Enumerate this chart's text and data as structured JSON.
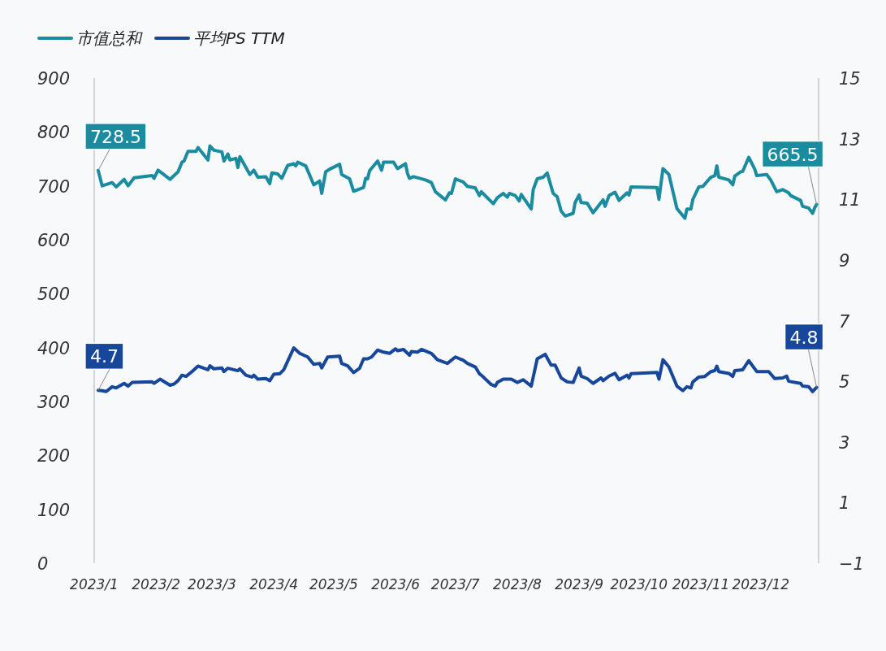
{
  "chart_data": {
    "type": "line",
    "xlim": [
      "2023-01-01",
      "2023-12-30"
    ],
    "xticks": [
      {
        "value": "2023-01-01",
        "label": "2023/1"
      },
      {
        "value": "2023-02-01",
        "label": "2023/2"
      },
      {
        "value": "2023-03-01",
        "label": "2023/3"
      },
      {
        "value": "2023-04-01",
        "label": "2023/4"
      },
      {
        "value": "2023-05-01",
        "label": "2023/5"
      },
      {
        "value": "2023-06-01",
        "label": "2023/6"
      },
      {
        "value": "2023-07-01",
        "label": "2023/7"
      },
      {
        "value": "2023-08-01",
        "label": "2023/8"
      },
      {
        "value": "2023-09-01",
        "label": "2023/9"
      },
      {
        "value": "2023-10-01",
        "label": "2023/10"
      },
      {
        "value": "2023-11-01",
        "label": "2023/11"
      },
      {
        "value": "2023-12-01",
        "label": "2023/12"
      }
    ],
    "ylim": [
      0,
      900
    ],
    "yticks": [
      0,
      100,
      200,
      300,
      400,
      500,
      600,
      700,
      800,
      900
    ],
    "y2lim": [
      -1,
      15
    ],
    "y2ticks": [
      {
        "value": -1,
        "label": "−1"
      },
      1,
      3,
      5,
      7,
      9,
      11,
      13,
      15
    ],
    "grid": false,
    "legend": "top left",
    "marker": "none",
    "line_style": "solid",
    "series": [
      {
        "name": "市值总和",
        "color": "#1b8ca0",
        "axis": "y",
        "x": [
          "2023-01-03",
          "2023-01-05",
          "2023-01-10",
          "2023-01-12",
          "2023-01-16",
          "2023-01-18",
          "2023-01-21",
          "2023-01-30",
          "2023-01-31",
          "2023-02-02",
          "2023-02-08",
          "2023-02-10",
          "2023-02-12",
          "2023-02-14",
          "2023-02-15",
          "2023-02-17",
          "2023-02-21",
          "2023-02-22",
          "2023-02-27",
          "2023-02-28",
          "2023-03-02",
          "2023-03-06",
          "2023-03-07",
          "2023-03-09",
          "2023-03-10",
          "2023-03-13",
          "2023-03-14",
          "2023-03-15",
          "2023-03-20",
          "2023-03-22",
          "2023-03-24",
          "2023-03-28",
          "2023-03-30",
          "2023-03-31",
          "2023-04-03",
          "2023-04-05",
          "2023-04-08",
          "2023-04-11",
          "2023-04-12",
          "2023-04-13",
          "2023-04-17",
          "2023-04-21",
          "2023-04-24",
          "2023-04-25",
          "2023-04-27",
          "2023-04-29",
          "2023-05-04",
          "2023-05-05",
          "2023-05-09",
          "2023-05-11",
          "2023-05-16",
          "2023-05-17",
          "2023-05-18",
          "2023-05-19",
          "2023-05-23",
          "2023-05-25",
          "2023-05-26",
          "2023-05-31",
          "2023-06-02",
          "2023-06-06",
          "2023-06-07",
          "2023-06-08",
          "2023-06-10",
          "2023-06-16",
          "2023-06-19",
          "2023-06-21",
          "2023-06-26",
          "2023-06-28",
          "2023-06-29",
          "2023-07-01",
          "2023-07-05",
          "2023-07-07",
          "2023-07-11",
          "2023-07-13",
          "2023-07-14",
          "2023-07-20",
          "2023-07-22",
          "2023-07-25",
          "2023-07-27",
          "2023-07-28",
          "2023-07-31",
          "2023-08-02",
          "2023-08-03",
          "2023-08-08",
          "2023-08-09",
          "2023-08-11",
          "2023-08-14",
          "2023-08-16",
          "2023-08-17",
          "2023-08-19",
          "2023-08-21",
          "2023-08-23",
          "2023-08-25",
          "2023-08-29",
          "2023-08-30",
          "2023-09-01",
          "2023-09-02",
          "2023-09-05",
          "2023-09-08",
          "2023-09-13",
          "2023-09-14",
          "2023-09-16",
          "2023-09-19",
          "2023-09-21",
          "2023-09-25",
          "2023-09-26",
          "2023-09-27",
          "2023-10-10",
          "2023-10-11",
          "2023-10-13",
          "2023-10-16",
          "2023-10-20",
          "2023-10-24",
          "2023-10-25",
          "2023-10-27",
          "2023-10-28",
          "2023-10-31",
          "2023-11-02",
          "2023-11-06",
          "2023-11-08",
          "2023-11-09",
          "2023-11-10",
          "2023-11-15",
          "2023-11-17",
          "2023-11-18",
          "2023-11-21",
          "2023-11-22",
          "2023-11-25",
          "2023-11-28",
          "2023-11-29",
          "2023-12-04",
          "2023-12-06",
          "2023-12-09",
          "2023-12-12",
          "2023-12-15",
          "2023-12-16",
          "2023-12-21",
          "2023-12-22",
          "2023-12-25",
          "2023-12-27",
          "2023-12-28",
          "2023-12-29"
        ],
        "values": [
          728.5,
          700,
          706,
          698,
          712,
          700,
          715,
          719,
          714,
          729,
          712,
          719,
          726,
          744,
          746,
          764,
          764,
          771,
          748,
          774,
          766,
          763,
          746,
          759,
          748,
          751,
          734,
          754,
          721,
          729,
          716,
          717,
          704,
          724,
          722,
          714,
          738,
          741,
          737,
          744,
          737,
          702,
          709,
          686,
          726,
          731,
          740,
          721,
          713,
          690,
          697,
          714,
          713,
          728,
          746,
          729,
          744,
          744,
          732,
          741,
          723,
          714,
          717,
          711,
          706,
          689,
          674,
          687,
          686,
          713,
          707,
          699,
          696,
          682,
          689,
          667,
          678,
          686,
          679,
          686,
          682,
          672,
          684,
          657,
          693,
          713,
          716,
          724,
          711,
          686,
          680,
          653,
          644,
          649,
          669,
          683,
          669,
          668,
          650,
          674,
          662,
          682,
          688,
          673,
          687,
          683,
          698,
          697,
          675,
          732,
          721,
          658,
          640,
          657,
          657,
          675,
          698,
          699,
          716,
          719,
          737,
          716,
          711,
          702,
          718,
          726,
          727,
          753,
          731,
          719,
          721,
          711,
          689,
          693,
          687,
          682,
          673,
          662,
          659,
          649,
          659,
          665.5
        ],
        "value_labels": [
          "728.5",
          null,
          null,
          null,
          null,
          null,
          null,
          null,
          null,
          null,
          null,
          null,
          null,
          null,
          null,
          null,
          null,
          null,
          null,
          null,
          null,
          null,
          null,
          null,
          null,
          null,
          null,
          null,
          null,
          null,
          null,
          null,
          null,
          null,
          null,
          null,
          null,
          null,
          null,
          null,
          null,
          null,
          null,
          null,
          null,
          null,
          null,
          null,
          null,
          null,
          null,
          null,
          null,
          null,
          null,
          null,
          null,
          null,
          null,
          null,
          null,
          null,
          null,
          null,
          null,
          null,
          null,
          null,
          null,
          null,
          null,
          null,
          null,
          null,
          null,
          null,
          null,
          null,
          null,
          null,
          null,
          null,
          null,
          null,
          null,
          null,
          null,
          null,
          null,
          null,
          null,
          null,
          null,
          null,
          null,
          null,
          null,
          null,
          null,
          null,
          null,
          null,
          null,
          null,
          null,
          null,
          null,
          null,
          null,
          null,
          null,
          null,
          null,
          null,
          null,
          null,
          null,
          null,
          null,
          null,
          null,
          null,
          null,
          null,
          null,
          null,
          null,
          null,
          null,
          null,
          null,
          null,
          null,
          null,
          null,
          null,
          null,
          null,
          null,
          null,
          null,
          "665.5"
        ]
      },
      {
        "name": "平均PS TTM",
        "color": "#17479a",
        "axis": "y2",
        "x": [
          "2023-01-03",
          "2023-01-05",
          "2023-01-07",
          "2023-01-10",
          "2023-01-12",
          "2023-01-16",
          "2023-01-18",
          "2023-01-20",
          "2023-01-30",
          "2023-01-31",
          "2023-02-03",
          "2023-02-08",
          "2023-02-10",
          "2023-02-12",
          "2023-02-14",
          "2023-02-16",
          "2023-02-19",
          "2023-02-22",
          "2023-02-27",
          "2023-02-28",
          "2023-03-02",
          "2023-03-06",
          "2023-03-07",
          "2023-03-09",
          "2023-03-14",
          "2023-03-15",
          "2023-03-18",
          "2023-03-21",
          "2023-03-22",
          "2023-03-24",
          "2023-03-28",
          "2023-03-30",
          "2023-04-01",
          "2023-04-04",
          "2023-04-06",
          "2023-04-11",
          "2023-04-14",
          "2023-04-18",
          "2023-04-21",
          "2023-04-24",
          "2023-04-25",
          "2023-04-28",
          "2023-05-04",
          "2023-05-05",
          "2023-05-08",
          "2023-05-11",
          "2023-05-14",
          "2023-05-16",
          "2023-05-18",
          "2023-05-20",
          "2023-05-23",
          "2023-05-26",
          "2023-05-29",
          "2023-06-01",
          "2023-06-02",
          "2023-06-05",
          "2023-06-08",
          "2023-06-09",
          "2023-06-12",
          "2023-06-14",
          "2023-06-19",
          "2023-06-22",
          "2023-06-27",
          "2023-07-01",
          "2023-07-05",
          "2023-07-07",
          "2023-07-11",
          "2023-07-13",
          "2023-07-14",
          "2023-07-19",
          "2023-07-21",
          "2023-07-22",
          "2023-07-25",
          "2023-07-29",
          "2023-08-01",
          "2023-08-04",
          "2023-08-08",
          "2023-08-11",
          "2023-08-15",
          "2023-08-18",
          "2023-08-20",
          "2023-08-23",
          "2023-08-26",
          "2023-08-29",
          "2023-09-01",
          "2023-09-02",
          "2023-09-05",
          "2023-09-08",
          "2023-09-12",
          "2023-09-13",
          "2023-09-16",
          "2023-09-19",
          "2023-09-21",
          "2023-09-25",
          "2023-09-26",
          "2023-09-27",
          "2023-10-10",
          "2023-10-11",
          "2023-10-13",
          "2023-10-16",
          "2023-10-20",
          "2023-10-23",
          "2023-10-25",
          "2023-10-27",
          "2023-10-28",
          "2023-10-31",
          "2023-11-03",
          "2023-11-06",
          "2023-11-08",
          "2023-11-09",
          "2023-11-10",
          "2023-11-15",
          "2023-11-17",
          "2023-11-18",
          "2023-11-22",
          "2023-11-25",
          "2023-11-29",
          "2023-12-05",
          "2023-12-08",
          "2023-12-12",
          "2023-12-14",
          "2023-12-15",
          "2023-12-21",
          "2023-12-22",
          "2023-12-25",
          "2023-12-27",
          "2023-12-28",
          "2023-12-29"
        ],
        "values": [
          4.7,
          4.69,
          4.66,
          4.82,
          4.78,
          4.93,
          4.84,
          4.96,
          4.98,
          4.93,
          5.07,
          4.87,
          4.91,
          5.02,
          5.2,
          5.16,
          5.32,
          5.5,
          5.38,
          5.51,
          5.41,
          5.44,
          5.32,
          5.43,
          5.35,
          5.41,
          5.2,
          5.14,
          5.2,
          5.07,
          5.09,
          5.02,
          5.23,
          5.25,
          5.38,
          6.1,
          5.92,
          5.8,
          5.56,
          5.59,
          5.44,
          5.8,
          5.83,
          5.59,
          5.51,
          5.29,
          5.43,
          5.74,
          5.74,
          5.8,
          6.03,
          5.96,
          5.92,
          6.07,
          6.01,
          6.05,
          5.86,
          5.98,
          5.96,
          6.05,
          5.92,
          5.71,
          5.59,
          5.8,
          5.69,
          5.59,
          5.47,
          5.25,
          5.2,
          4.89,
          4.84,
          4.96,
          5.07,
          5.07,
          4.96,
          5.05,
          4.84,
          5.74,
          5.89,
          5.53,
          5.53,
          5.11,
          4.98,
          4.96,
          5.44,
          5.17,
          5.09,
          4.93,
          5.11,
          5.02,
          5.17,
          5.26,
          5.05,
          5.2,
          5.11,
          5.25,
          5.29,
          5.07,
          5.71,
          5.47,
          4.84,
          4.69,
          4.82,
          4.78,
          4.98,
          5.14,
          5.16,
          5.32,
          5.35,
          5.5,
          5.32,
          5.26,
          5.16,
          5.35,
          5.38,
          5.68,
          5.32,
          5.32,
          5.09,
          5.11,
          5.17,
          5.0,
          4.93,
          4.84,
          4.82,
          4.66,
          4.73,
          4.8
        ],
        "value_labels": [
          "4.7",
          null,
          null,
          null,
          null,
          null,
          null,
          null,
          null,
          null,
          null,
          null,
          null,
          null,
          null,
          null,
          null,
          null,
          null,
          null,
          null,
          null,
          null,
          null,
          null,
          null,
          null,
          null,
          null,
          null,
          null,
          null,
          null,
          null,
          null,
          null,
          null,
          null,
          null,
          null,
          null,
          null,
          null,
          null,
          null,
          null,
          null,
          null,
          null,
          null,
          null,
          null,
          null,
          null,
          null,
          null,
          null,
          null,
          null,
          null,
          null,
          null,
          null,
          null,
          null,
          null,
          null,
          null,
          null,
          null,
          null,
          null,
          null,
          null,
          null,
          null,
          null,
          null,
          null,
          null,
          null,
          null,
          null,
          null,
          null,
          null,
          null,
          null,
          null,
          null,
          null,
          null,
          null,
          null,
          null,
          null,
          null,
          null,
          null,
          null,
          null,
          null,
          null,
          null,
          null,
          null,
          null,
          null,
          null,
          null,
          null,
          null,
          null,
          null,
          null,
          null,
          null,
          null,
          null,
          null,
          null,
          null,
          null,
          null,
          null,
          null,
          null,
          "4.8"
        ]
      }
    ]
  }
}
